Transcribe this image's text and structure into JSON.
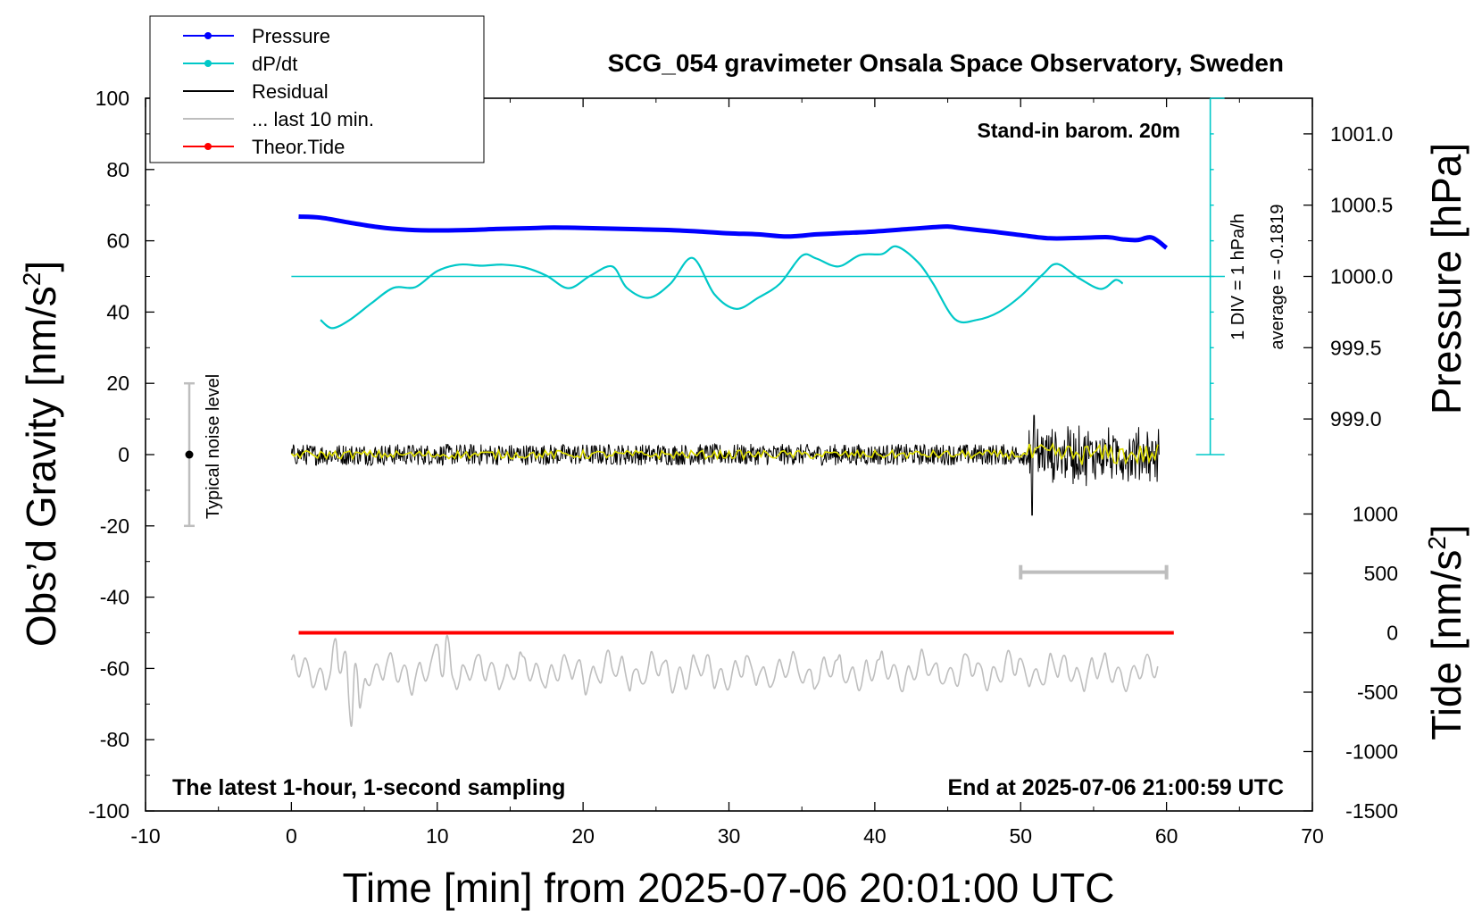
{
  "chart_data": {
    "type": "line",
    "title": "SCG_054 gravimeter Onsala Space Observatory, Sweden",
    "xlabel": "Time [min] from 2025-07-06 20:01:00 UTC",
    "ylabel_left_main": "Obs’d Gravity [nm/s",
    "ylabel_left_sup": "2",
    "ylabel_left_end": "]",
    "ylabel_right_pressure": "Pressure [hPa]",
    "ylabel_right_tide_main": "Tide [nm/s",
    "ylabel_right_tide_sup": "2",
    "ylabel_right_tide_end": "]",
    "xlim": [
      -10,
      70
    ],
    "ylim": [
      -100,
      100
    ],
    "x_ticks": [
      -10,
      0,
      10,
      20,
      30,
      40,
      50,
      60,
      70
    ],
    "x_tick_labels": [
      "-10",
      "0",
      "10",
      "20",
      "30",
      "40",
      "50",
      "60",
      "70"
    ],
    "y_ticks": [
      -100,
      -80,
      -60,
      -40,
      -20,
      0,
      20,
      40,
      60,
      80,
      100
    ],
    "y_tick_labels": [
      "-100",
      "-80",
      "-60",
      "-40",
      "-20",
      "0",
      "20",
      "40",
      "60",
      "80",
      "100"
    ],
    "pressure_axis": {
      "ticks": [
        999.0,
        999.5,
        1000.0,
        1000.5,
        1001.0
      ],
      "tick_labels": [
        "999.0",
        "999.5",
        "1000.0",
        "1000.5",
        "1001.0"
      ],
      "gravity_at_1000": 50,
      "gravity_per_hPa": 40
    },
    "tide_axis": {
      "ticks": [
        -1500,
        -1000,
        -500,
        0,
        500,
        1000
      ],
      "tick_labels": [
        "-1500",
        "-1000",
        "-500",
        "0",
        "500",
        "1000"
      ],
      "gravity_at_0": -50,
      "gravity_per_1000": 33.33
    },
    "legend": {
      "position": "top-left",
      "items": [
        {
          "label": "Pressure",
          "color": "#0000ff",
          "marker": true
        },
        {
          "label": "dP/dt",
          "color": "#00c8c8",
          "marker": true
        },
        {
          "label": "Residual",
          "color": "#000000",
          "marker": false
        },
        {
          "label": "... last 10 min.",
          "color": "#bebebe",
          "marker": false
        },
        {
          "label": "Theor.Tide",
          "color": "#ff0000",
          "marker": true
        }
      ]
    },
    "annotations": {
      "stand_in": "Stand-in barom. 20m",
      "bottom_left": "The latest 1-hour, 1-second sampling",
      "bottom_right": "End at 2025-07-06 21:00:59 UTC",
      "noise": "Typical noise level",
      "div_scale": "1 DIV = 1 hPa/h",
      "average": "average = -0.1819"
    },
    "noise_bar": {
      "x": -7,
      "center": 0,
      "low": -20,
      "high": 20
    },
    "last10_bar": {
      "x_start": 50,
      "x_end": 60,
      "y": -33
    },
    "dpdt_zero_line_y": 50,
    "dpdt_scale_bar": {
      "x": 63,
      "y_low": 0,
      "y_high": 100,
      "divisions": 10
    },
    "series": [
      {
        "name": "Pressure",
        "color": "#0000ff",
        "x": [
          0.5,
          2,
          4,
          6,
          8,
          10,
          12,
          14,
          16,
          18,
          20,
          22,
          24,
          26,
          28,
          30,
          32,
          34,
          36,
          38,
          40,
          42,
          44,
          45,
          46,
          48,
          50,
          52,
          54,
          56,
          57,
          58,
          59,
          60
        ],
        "values": [
          66.8,
          66.5,
          65.1,
          63.8,
          63.1,
          62.9,
          63.0,
          63.3,
          63.5,
          63.7,
          63.6,
          63.4,
          63.2,
          63.0,
          62.6,
          62.1,
          61.8,
          61.2,
          61.8,
          62.2,
          62.6,
          63.2,
          63.8,
          64.0,
          63.5,
          62.6,
          61.6,
          60.7,
          60.8,
          61.0,
          60.4,
          60.2,
          60.9,
          58.0
        ]
      },
      {
        "name": "dP/dt",
        "color": "#00c8c8",
        "x": [
          2,
          2.8,
          4,
          5.5,
          7,
          8.5,
          10,
          11.5,
          13,
          14.5,
          16,
          17.5,
          19,
          20.5,
          22,
          23,
          24.5,
          26,
          27.5,
          29,
          30.5,
          32,
          33.5,
          35,
          36,
          37.5,
          39,
          40.5,
          41.5,
          43,
          44,
          45.5,
          47,
          48.5,
          50,
          51.5,
          52.5,
          54,
          55.5,
          56.5,
          57
        ],
        "values": [
          37.8,
          35.5,
          37.8,
          42.5,
          46.8,
          47.0,
          51.5,
          53.3,
          53.0,
          53.3,
          52.5,
          50.2,
          46.7,
          50.2,
          52.8,
          46.8,
          44.0,
          48.0,
          55.2,
          45.0,
          40.9,
          44.0,
          48.0,
          55.8,
          55.0,
          52.8,
          56.0,
          56.3,
          58.4,
          53.8,
          48.0,
          38.0,
          37.8,
          40.0,
          44.5,
          50.5,
          53.5,
          49.5,
          46.5,
          49.0,
          48.0
        ]
      },
      {
        "name": "Residual",
        "color": "#000000",
        "x_start": 0,
        "x_end": 59.5,
        "base_level": 0,
        "noise_amplitude": 3,
        "burst_start": 50.5,
        "burst_amplitude": 9,
        "spike_x": 50.8,
        "spike_min": -17,
        "spike_max": 11
      },
      {
        "name": "Residual smoothed",
        "color": "#e0e000",
        "x_start": 0,
        "x_end": 59.5,
        "base_level": 0
      },
      {
        "name": "... last 10 min.",
        "color": "#bebebe",
        "x_start": 0,
        "x_end": 59.5,
        "base_level": -61,
        "amplitude": 6,
        "events": [
          {
            "x": 3.2,
            "min": -60,
            "max": -51
          },
          {
            "x": 4.3,
            "min": -79,
            "max": -60
          },
          {
            "x": 10.5,
            "min": -61,
            "max": -50
          }
        ]
      },
      {
        "name": "Theor.Tide",
        "color": "#ff0000",
        "x": [
          0.5,
          60.5
        ],
        "values": [
          -50,
          -50
        ]
      }
    ]
  }
}
